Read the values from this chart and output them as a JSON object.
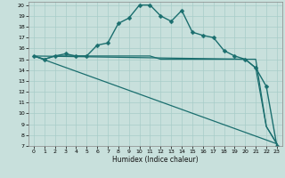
{
  "xlabel": "Humidex (Indice chaleur)",
  "background_color": "#c8e0dc",
  "grid_color": "#a8ccc8",
  "line_color": "#1a6e6e",
  "xlim": [
    -0.5,
    23.5
  ],
  "ylim": [
    7,
    20.3
  ],
  "xticks": [
    0,
    1,
    2,
    3,
    4,
    5,
    6,
    7,
    8,
    9,
    10,
    11,
    12,
    13,
    14,
    15,
    16,
    17,
    18,
    19,
    20,
    21,
    22,
    23
  ],
  "yticks": [
    7,
    8,
    9,
    10,
    11,
    12,
    13,
    14,
    15,
    16,
    17,
    18,
    19,
    20
  ],
  "series": [
    {
      "x": [
        0,
        1,
        2,
        3,
        4,
        5,
        6,
        7,
        8,
        9,
        10,
        11,
        12,
        13,
        14,
        15,
        16,
        17,
        18,
        19,
        20,
        21,
        22,
        23
      ],
      "y": [
        15.3,
        15.0,
        15.3,
        15.5,
        15.3,
        15.3,
        16.3,
        16.5,
        18.3,
        18.8,
        20.0,
        20.0,
        19.0,
        18.5,
        19.5,
        17.5,
        17.2,
        17.0,
        15.8,
        15.3,
        15.0,
        14.2,
        12.5,
        7.0
      ],
      "marker": "D",
      "markersize": 2.5,
      "linewidth": 1.0
    },
    {
      "x": [
        0,
        1,
        2,
        3,
        4,
        5,
        6,
        7,
        8,
        9,
        10,
        11,
        12,
        13,
        14,
        15,
        16,
        17,
        18,
        19,
        20,
        21,
        22,
        23
      ],
      "y": [
        15.3,
        15.0,
        15.3,
        15.3,
        15.3,
        15.3,
        15.3,
        15.3,
        15.3,
        15.3,
        15.3,
        15.3,
        15.0,
        15.0,
        15.0,
        15.0,
        15.0,
        15.0,
        15.0,
        15.0,
        15.0,
        15.0,
        8.8,
        7.2
      ],
      "marker": null,
      "markersize": 0,
      "linewidth": 0.9
    },
    {
      "x": [
        0,
        23
      ],
      "y": [
        15.3,
        7.2
      ],
      "marker": null,
      "markersize": 0,
      "linewidth": 0.9
    },
    {
      "x": [
        0,
        20,
        21,
        22,
        23
      ],
      "y": [
        15.3,
        15.0,
        14.2,
        8.8,
        7.2
      ],
      "marker": null,
      "markersize": 0,
      "linewidth": 0.9
    }
  ]
}
